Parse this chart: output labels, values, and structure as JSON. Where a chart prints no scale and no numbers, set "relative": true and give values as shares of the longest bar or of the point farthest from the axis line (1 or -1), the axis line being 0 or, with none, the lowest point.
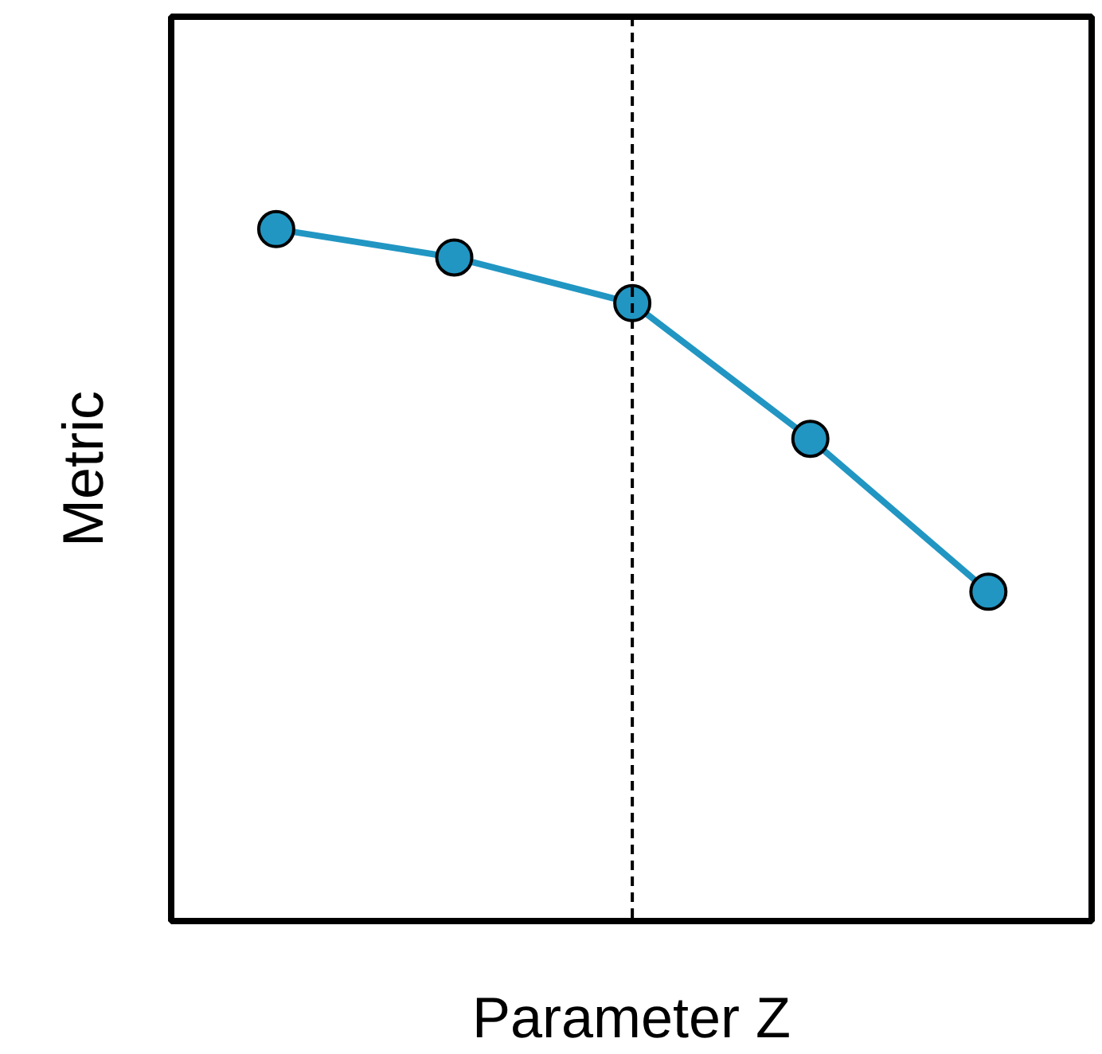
{
  "chart_data": {
    "type": "line",
    "xlabel": "Parameter Z",
    "ylabel": "Metric",
    "relative": true,
    "categories": [
      null,
      null,
      null,
      null,
      null
    ],
    "series": [
      {
        "color": "#2196c3",
        "values": [
          1,
          0.959,
          0.893,
          0.697,
          0.476
        ]
      }
    ],
    "marker": "circle",
    "line_style": "solid"
  }
}
